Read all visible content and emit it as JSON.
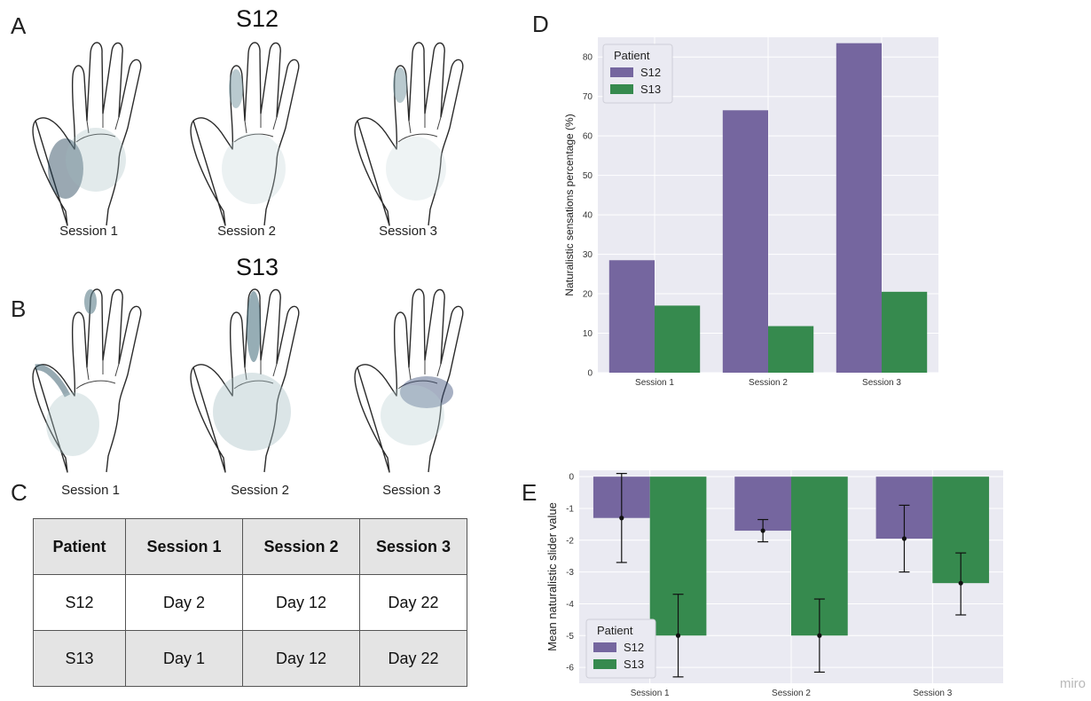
{
  "panel_labels": {
    "a": "A",
    "b": "B",
    "c": "C",
    "d": "D",
    "e": "E"
  },
  "hands": {
    "s12_title": "S12",
    "s13_title": "S13",
    "captions": [
      "Session 1",
      "Session 2",
      "Session 3"
    ]
  },
  "table": {
    "headers": [
      "Patient",
      "Session 1",
      "Session 2",
      "Session 3"
    ],
    "rows": [
      [
        "S12",
        "Day 2",
        "Day 12",
        "Day 22"
      ],
      [
        "S13",
        "Day 1",
        "Day 12",
        "Day 22"
      ]
    ]
  },
  "watermark": "miro",
  "colors": {
    "s12": "#75669f",
    "s13": "#368a4e",
    "plot_bg": "#eaeaf2"
  },
  "chart_data": [
    {
      "type": "bar",
      "title": "",
      "xlabel": "",
      "ylabel": "Naturalistic sensations percentage (%)",
      "categories": [
        "Session 1",
        "Session 2",
        "Session 3"
      ],
      "ylim": [
        0,
        85
      ],
      "yticks": [
        0,
        10,
        20,
        30,
        40,
        50,
        60,
        70,
        80
      ],
      "grid": true,
      "legend": {
        "title": "Patient",
        "placement": "top-left"
      },
      "series": [
        {
          "name": "S12",
          "values": [
            28.5,
            66.5,
            83.5
          ]
        },
        {
          "name": "S13",
          "values": [
            17,
            11.8,
            20.5
          ]
        }
      ]
    },
    {
      "type": "bar",
      "title": "",
      "xlabel": "",
      "ylabel": "Mean naturalistic slider value",
      "categories": [
        "Session 1",
        "Session 2",
        "Session 3"
      ],
      "ylim": [
        -6.5,
        0.2
      ],
      "yticks": [
        0,
        -1,
        -2,
        -3,
        -4,
        -5,
        -6
      ],
      "grid": true,
      "legend": {
        "title": "Patient",
        "placement": "bottom-left"
      },
      "series": [
        {
          "name": "S12",
          "values": [
            -1.3,
            -1.7,
            -1.95
          ],
          "error_low": [
            -2.7,
            -2.05,
            -3.0
          ],
          "error_high": [
            0.1,
            -1.35,
            -0.9
          ]
        },
        {
          "name": "S13",
          "values": [
            -5.0,
            -5.0,
            -3.35
          ],
          "error_low": [
            -6.3,
            -6.15,
            -4.35
          ],
          "error_high": [
            -3.7,
            -3.85,
            -2.4
          ]
        }
      ]
    }
  ]
}
